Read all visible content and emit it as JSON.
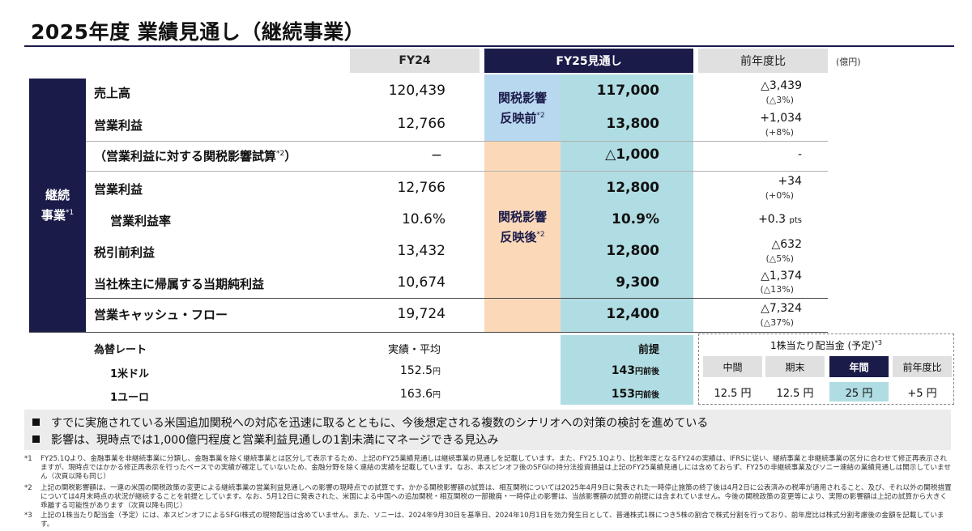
{
  "title": "2025年度 業績見通し（継続事業）",
  "header": {
    "fy24": "FY24",
    "fy25": "FY25見通し",
    "yoy": "前年度比",
    "unit": "(億円)"
  },
  "segment": {
    "label_line1": "継続",
    "label_line2": "事業",
    "note": "*1"
  },
  "tariff_before": {
    "line1": "関税影響",
    "line2": "反映前",
    "note": "*2"
  },
  "tariff_after": {
    "line1": "関税影響",
    "line2": "反映後",
    "note": "*2"
  },
  "rows": [
    {
      "label": "売上高",
      "fy24": "120,439",
      "fy25": "117,000",
      "yoy": "△3,439",
      "yoy_sub": "(△3%)"
    },
    {
      "label": "営業利益",
      "fy24": "12,766",
      "fy25": "13,800",
      "yoy": "+1,034",
      "yoy_sub": "(+8%)"
    },
    {
      "label": "（営業利益に対する関税影響試算",
      "note": "*2",
      "label_end": "）",
      "fy24": "−",
      "fy25": "△1,000",
      "yoy": "-",
      "yoy_sub": ""
    },
    {
      "label": "営業利益",
      "fy24": "12,766",
      "fy25": "12,800",
      "yoy": "+34",
      "yoy_sub": "(+0%)"
    },
    {
      "label": "営業利益率",
      "fy24": "10.6%",
      "fy25": "10.9%",
      "yoy": "+0.3",
      "yoy_unit": "pts",
      "yoy_sub": ""
    },
    {
      "label": "税引前利益",
      "fy24": "13,432",
      "fy25": "12,800",
      "yoy": "△632",
      "yoy_sub": "(△5%)"
    },
    {
      "label": "当社株主に帰属する当期純利益",
      "fy24": "10,674",
      "fy25": "9,300",
      "yoy": "△1,374",
      "yoy_sub": "(△13%)"
    },
    {
      "label": "営業キャッシュ・フロー",
      "fy24": "19,724",
      "fy25": "12,400",
      "yoy": "△7,324",
      "yoy_sub": "(△37%)"
    }
  ],
  "fx": {
    "label": "為替レート",
    "fy24_header": "実績・平均",
    "fy25_header": "前提",
    "rows": [
      {
        "label": "1米ドル",
        "fy24": "152.5",
        "fy24_unit": "円",
        "fy25": "143",
        "fy25_unit": "円前後"
      },
      {
        "label": "1ユーロ",
        "fy24": "163.6",
        "fy24_unit": "円",
        "fy25": "153",
        "fy25_unit": "円前後"
      }
    ]
  },
  "dividend": {
    "title": "1株当たり配当金 (予定)",
    "note": "*3",
    "headers": [
      "中間",
      "期末",
      "年間",
      "前年度比"
    ],
    "values": [
      "12.5 円",
      "12.5 円",
      "25 円",
      "+5 円"
    ],
    "active_index": 2
  },
  "bullets": [
    "すでに実施されている米国追加関税への対応を迅速に取るとともに、今後想定される複数のシナリオへの対策の検討を進めている",
    "影響は、現時点では1,000億円程度と営業利益見通しの1割未満にマネージできる見込み"
  ],
  "footnotes": [
    {
      "num": "*1",
      "text": "FY25.1Qより、金融事業を非継続事業に分類し、金融事業を除く継続事業とは区分して表示するため、上記のFY25業績見通しは継続事業の見通しを記載しています。また、FY25.1Qより、比較年度となるFY24の実績は、IFRSに従い、継続事業と非継続事業の区分に合わせて修正再表示されますが、現時点ではかかる修正再表示を行ったベースでの実績が確定していないため、金融分野を除く連結の実績を記載しています。なお、本スピンオフ後のSFGIの持分法投資損益は上記のFY25業績見通しには含めておらず、FY25の非継続事業及びソニー連結の業績見通しは開示していません（次頁以降も同じ）"
    },
    {
      "num": "*2",
      "text": "上記の関税影響額は、一連の米国の関税政策の変更による継続事業の営業利益見通しへの影響の現時点での試算です。かかる関税影響額の試算は、相互関税については2025年4月9日に発表された一時停止施策の終了後は4月2日に公表済みの税率が適用されること、及び、それ以外の関税措置については4月末時点の状況が継続することを前提としています。なお、5月12日に発表された、米国による中国への追加関税・相互関税の一部撤廃・一時停止の影響は、当該影響額の試算の前提には含まれていません。今後の関税政策の変更等により、実際の影響額は上記の試算から大きく乖離する可能性があります（次頁以降も同じ）"
    },
    {
      "num": "*3",
      "text": "上記の1株当たり配当金（予定）には、本スピンオフによるSFGI株式の現物配当は含めていません。また、ソニーは、2024年9月30日を基準日、2024年10月1日を効力発生日として、普通株式1株につき5株の割合で株式分割を行っており、前年度比は株式分割考慮後の金額を記載しています。"
    }
  ],
  "colors": {
    "navy": "#1b1b4a",
    "teal": "#b0dde3",
    "blue": "#b8d8f0",
    "orange": "#fbd9b8"
  }
}
